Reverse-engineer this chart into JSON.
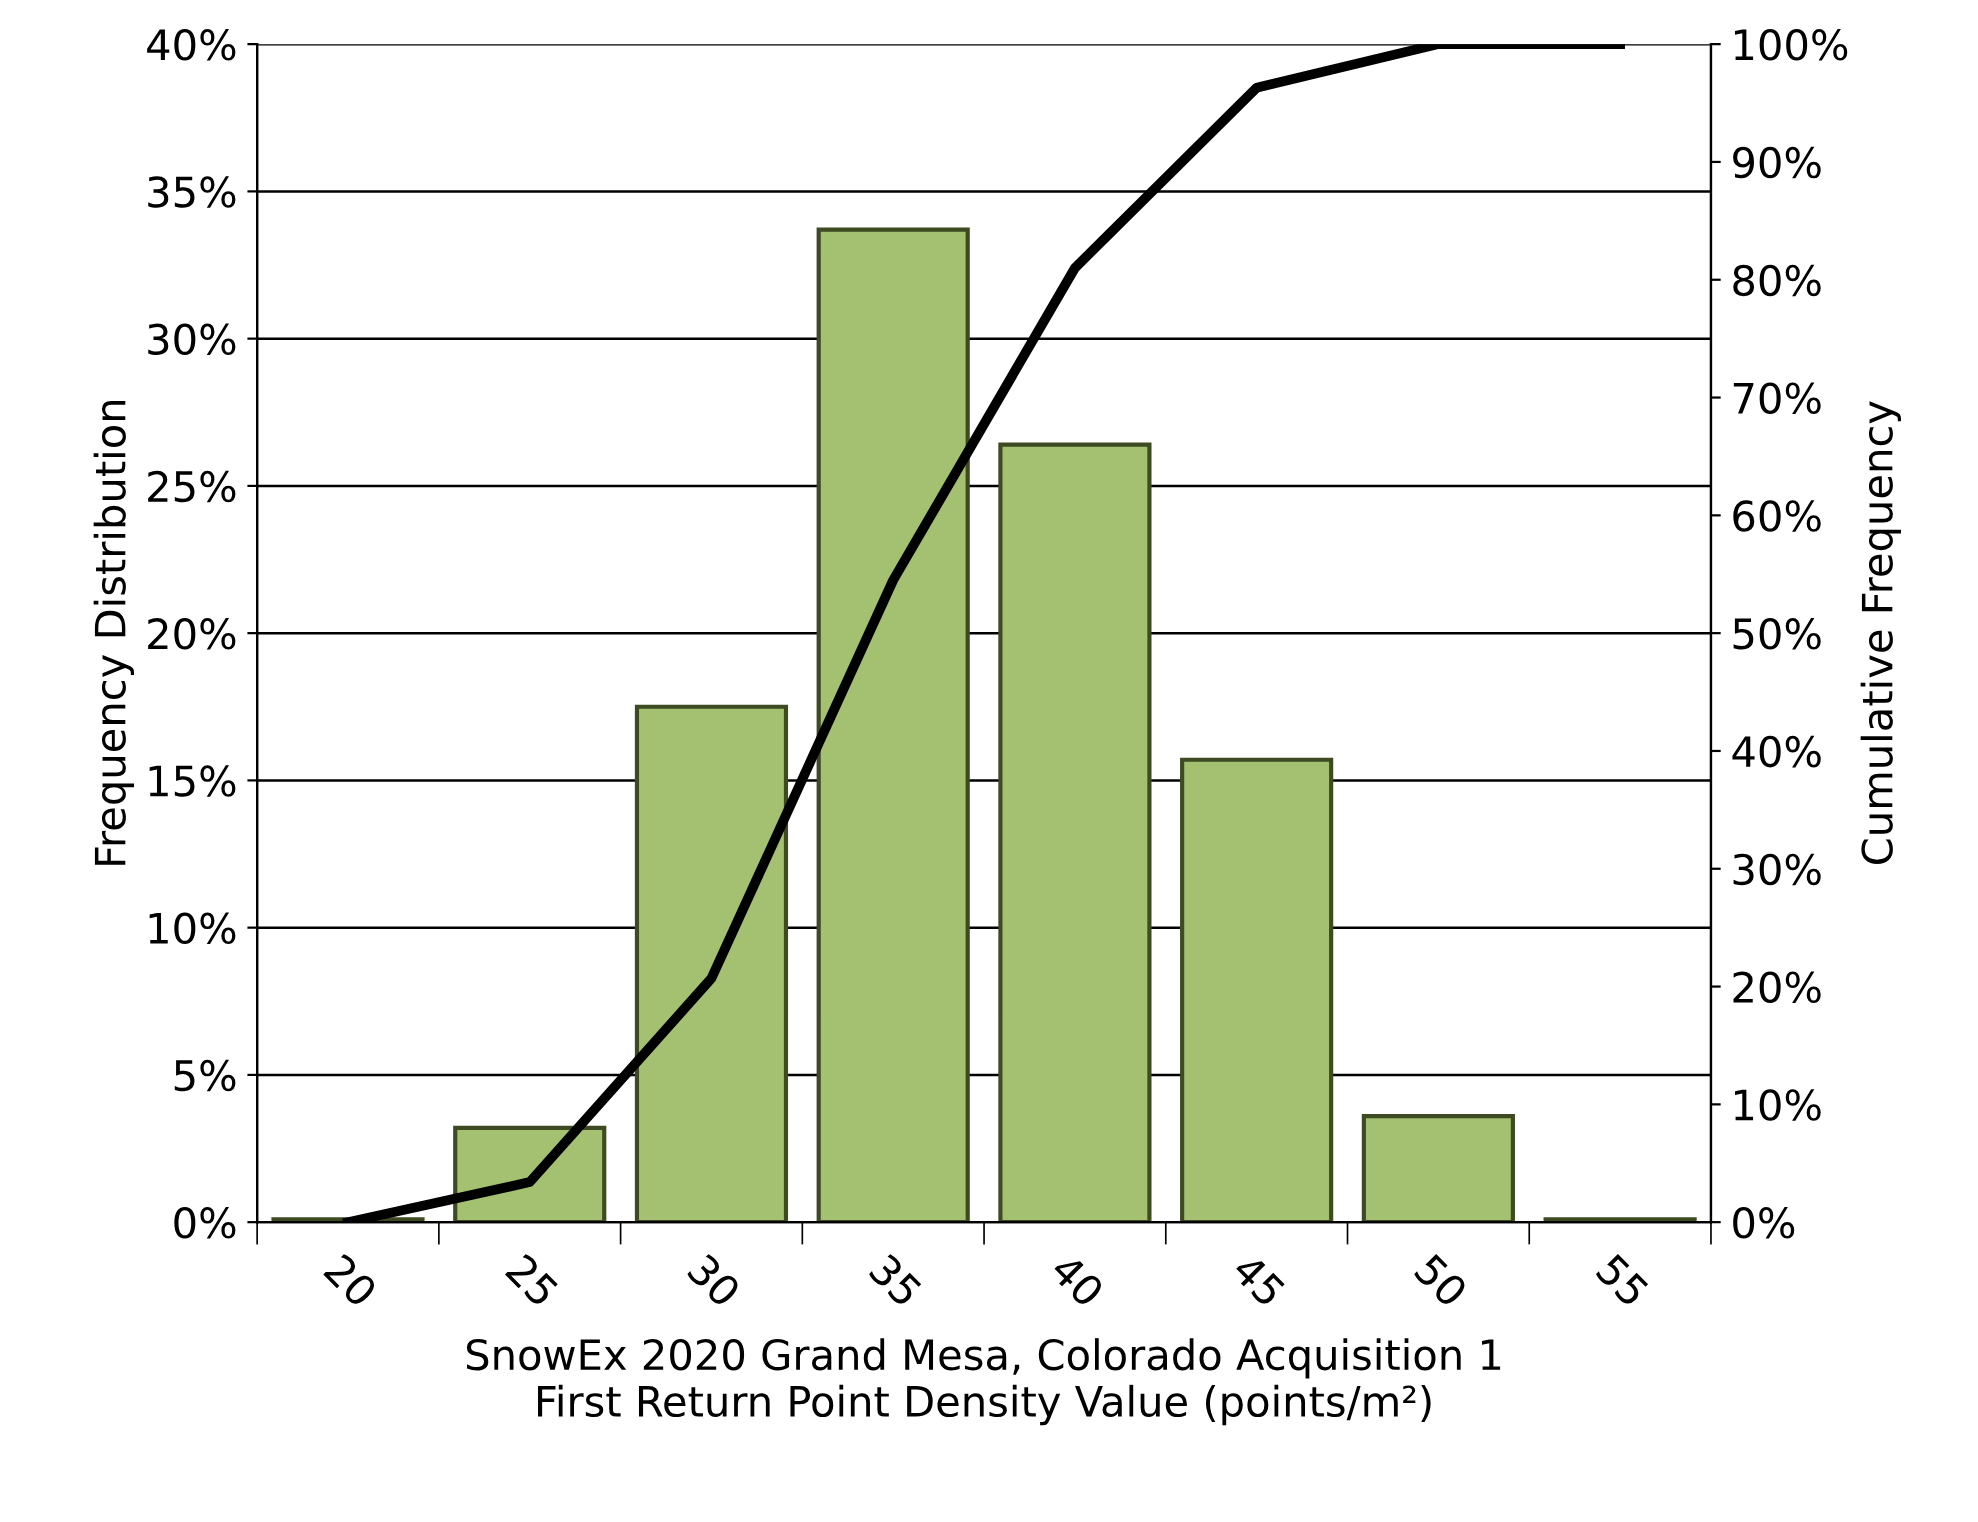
{
  "chart_data": {
    "type": "bar",
    "categories": [
      "20",
      "25",
      "30",
      "35",
      "40",
      "45",
      "50",
      "55"
    ],
    "series": [
      {
        "color": "#a3c170",
        "values": [
          0.1,
          3.2,
          17.5,
          33.7,
          26.4,
          15.7,
          3.6,
          0.1
        ]
      },
      {
        "type": "line",
        "axis": "y2",
        "color": "#000000",
        "values": [
          0,
          3.4,
          20.7,
          54.5,
          81,
          96.3,
          100,
          100
        ]
      }
    ],
    "xlabel": "SnowEx 2020 Grand Mesa, Colorado Acquisition 1\nFirst Return Point Density Value (points/m²)",
    "ylabel": "Frequency Distribution",
    "y2label": "Cumulative Frequency",
    "ylim": [
      0,
      40
    ],
    "yticks": [
      {
        "value": 0,
        "label": "0%"
      },
      {
        "value": 5,
        "label": "5%"
      },
      {
        "value": 10,
        "label": "10%"
      },
      {
        "value": 15,
        "label": "15%"
      },
      {
        "value": 20,
        "label": "20%"
      },
      {
        "value": 25,
        "label": "25%"
      },
      {
        "value": 30,
        "label": "30%"
      },
      {
        "value": 35,
        "label": "35%"
      },
      {
        "value": 40,
        "label": "40%"
      }
    ],
    "y2lim": [
      0,
      100
    ],
    "y2ticks": [
      {
        "value": 0,
        "label": "0%"
      },
      {
        "value": 10,
        "label": "10%"
      },
      {
        "value": 20,
        "label": "20%"
      },
      {
        "value": 30,
        "label": "30%"
      },
      {
        "value": 40,
        "label": "40%"
      },
      {
        "value": 50,
        "label": "50%"
      },
      {
        "value": 60,
        "label": "60%"
      },
      {
        "value": 70,
        "label": "70%"
      },
      {
        "value": 80,
        "label": "80%"
      },
      {
        "value": 90,
        "label": "90%"
      },
      {
        "value": 100,
        "label": "100%"
      }
    ],
    "grid": "y",
    "legend": false,
    "marker": "none",
    "line_style": "solid"
  }
}
